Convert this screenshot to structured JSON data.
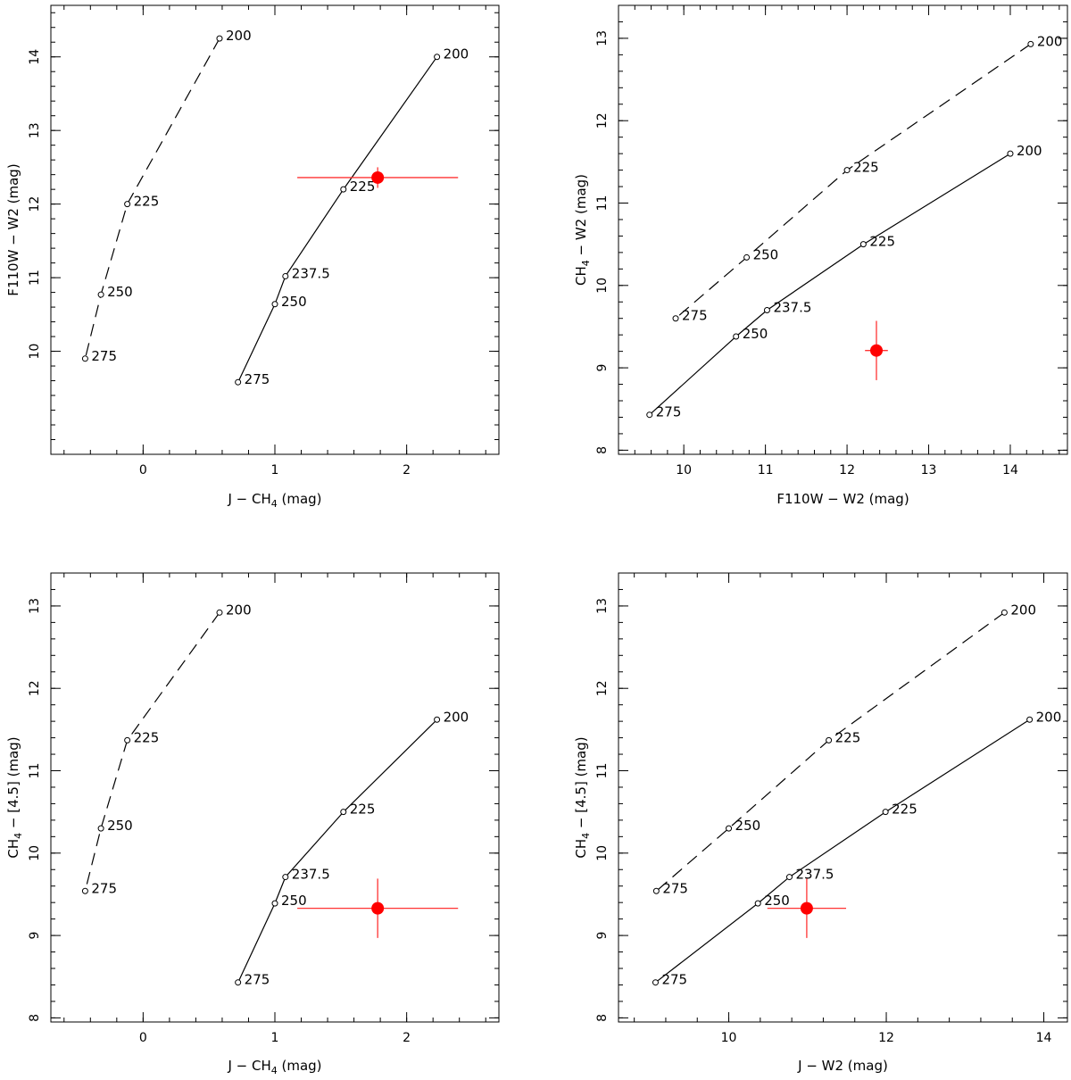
{
  "chart_data": [
    {
      "type": "line",
      "xlabel": "J − CH",
      "xlabel_sub": "4",
      "xlabel_tail": " (mag)",
      "ylabel": "F110W − W2 (mag)",
      "ylabel_sub": "",
      "ylabel_tail": "",
      "xlim": [
        -0.7,
        2.7
      ],
      "ylim": [
        8.6,
        14.7
      ],
      "xticks": [
        0,
        1,
        2
      ],
      "xticks_minor": 0.2,
      "yticks": [
        10,
        11,
        12,
        13,
        14
      ],
      "yticks_minor": 0.2,
      "series": [
        {
          "name": "dashed",
          "style": "dashed",
          "points": [
            {
              "x": 0.58,
              "y": 14.25,
              "label": "200"
            },
            {
              "x": -0.12,
              "y": 12.0,
              "label": "225"
            },
            {
              "x": -0.32,
              "y": 10.77,
              "label": "250"
            },
            {
              "x": -0.44,
              "y": 9.9,
              "label": "275"
            }
          ]
        },
        {
          "name": "solid",
          "style": "solid",
          "points": [
            {
              "x": 2.23,
              "y": 14.0,
              "label": "200"
            },
            {
              "x": 1.52,
              "y": 12.2,
              "label": "225"
            },
            {
              "x": 1.08,
              "y": 11.02,
              "label": "237.5"
            },
            {
              "x": 1.0,
              "y": 10.64,
              "label": "250"
            },
            {
              "x": 0.72,
              "y": 9.58,
              "label": "275"
            }
          ]
        }
      ],
      "observation": {
        "x": 1.78,
        "y": 12.36,
        "xerr": 0.61,
        "yerr": 0.14
      }
    },
    {
      "type": "line",
      "xlabel": "F110W − W2 (mag)",
      "xlabel_sub": "",
      "xlabel_tail": "",
      "ylabel": "CH",
      "ylabel_sub": "4",
      "ylabel_tail": " − W2 (mag)",
      "xlim": [
        9.2,
        14.7
      ],
      "ylim": [
        7.95,
        13.4
      ],
      "xticks": [
        10,
        11,
        12,
        13,
        14
      ],
      "xticks_minor": 0.2,
      "yticks": [
        8,
        9,
        10,
        11,
        12,
        13
      ],
      "yticks_minor": 0.2,
      "series": [
        {
          "name": "dashed",
          "style": "dashed",
          "points": [
            {
              "x": 14.25,
              "y": 12.93,
              "label": "200"
            },
            {
              "x": 12.0,
              "y": 11.4,
              "label": "225"
            },
            {
              "x": 10.77,
              "y": 10.34,
              "label": "250"
            },
            {
              "x": 9.9,
              "y": 9.6,
              "label": "275"
            }
          ]
        },
        {
          "name": "solid",
          "style": "solid",
          "points": [
            {
              "x": 14.0,
              "y": 11.6,
              "label": "200"
            },
            {
              "x": 12.2,
              "y": 10.5,
              "label": "225"
            },
            {
              "x": 11.02,
              "y": 9.7,
              "label": "237.5"
            },
            {
              "x": 10.64,
              "y": 9.38,
              "label": "250"
            },
            {
              "x": 9.58,
              "y": 8.43,
              "label": "275"
            }
          ]
        }
      ],
      "observation": {
        "x": 12.36,
        "y": 9.21,
        "xerr": 0.14,
        "yerr": 0.36
      }
    },
    {
      "type": "line",
      "xlabel": "J − CH",
      "xlabel_sub": "4",
      "xlabel_tail": " (mag)",
      "ylabel": "CH",
      "ylabel_sub": "4",
      "ylabel_tail": " − [4.5] (mag)",
      "xlim": [
        -0.7,
        2.7
      ],
      "ylim": [
        7.95,
        13.4
      ],
      "xticks": [
        0,
        1,
        2
      ],
      "xticks_minor": 0.2,
      "yticks": [
        8,
        9,
        10,
        11,
        12,
        13
      ],
      "yticks_minor": 0.2,
      "series": [
        {
          "name": "dashed",
          "style": "dashed",
          "points": [
            {
              "x": 0.58,
              "y": 12.92,
              "label": "200"
            },
            {
              "x": -0.12,
              "y": 11.37,
              "label": "225"
            },
            {
              "x": -0.32,
              "y": 10.3,
              "label": "250"
            },
            {
              "x": -0.44,
              "y": 9.54,
              "label": "275"
            }
          ]
        },
        {
          "name": "solid",
          "style": "solid",
          "points": [
            {
              "x": 2.23,
              "y": 11.62,
              "label": "200"
            },
            {
              "x": 1.52,
              "y": 10.5,
              "label": "225"
            },
            {
              "x": 1.08,
              "y": 9.71,
              "label": "237.5"
            },
            {
              "x": 1.0,
              "y": 9.39,
              "label": "250"
            },
            {
              "x": 0.72,
              "y": 8.43,
              "label": "275"
            }
          ]
        }
      ],
      "observation": {
        "x": 1.78,
        "y": 9.33,
        "xerr": 0.61,
        "yerr": 0.36
      }
    },
    {
      "type": "line",
      "xlabel": "J − W2 (mag)",
      "xlabel_sub": "",
      "xlabel_tail": "",
      "ylabel": "CH",
      "ylabel_sub": "4",
      "ylabel_tail": " − [4.5] (mag)",
      "xlim": [
        8.6,
        14.3
      ],
      "ylim": [
        7.95,
        13.4
      ],
      "xticks": [
        10,
        12,
        14
      ],
      "xticks_minor": 0.4,
      "yticks": [
        8,
        9,
        10,
        11,
        12,
        13
      ],
      "yticks_minor": 0.2,
      "series": [
        {
          "name": "dashed",
          "style": "dashed",
          "points": [
            {
              "x": 13.5,
              "y": 12.92,
              "label": "200"
            },
            {
              "x": 11.27,
              "y": 11.37,
              "label": "225"
            },
            {
              "x": 10.0,
              "y": 10.3,
              "label": "250"
            },
            {
              "x": 9.08,
              "y": 9.54,
              "label": "275"
            }
          ]
        },
        {
          "name": "solid",
          "style": "solid",
          "points": [
            {
              "x": 13.82,
              "y": 11.62,
              "label": "200"
            },
            {
              "x": 11.99,
              "y": 10.5,
              "label": "225"
            },
            {
              "x": 10.77,
              "y": 9.71,
              "label": "237.5"
            },
            {
              "x": 10.37,
              "y": 9.39,
              "label": "250"
            },
            {
              "x": 9.07,
              "y": 8.43,
              "label": "275"
            }
          ]
        }
      ],
      "observation": {
        "x": 10.99,
        "y": 9.33,
        "xerr": 0.5,
        "yerr": 0.36
      }
    }
  ]
}
